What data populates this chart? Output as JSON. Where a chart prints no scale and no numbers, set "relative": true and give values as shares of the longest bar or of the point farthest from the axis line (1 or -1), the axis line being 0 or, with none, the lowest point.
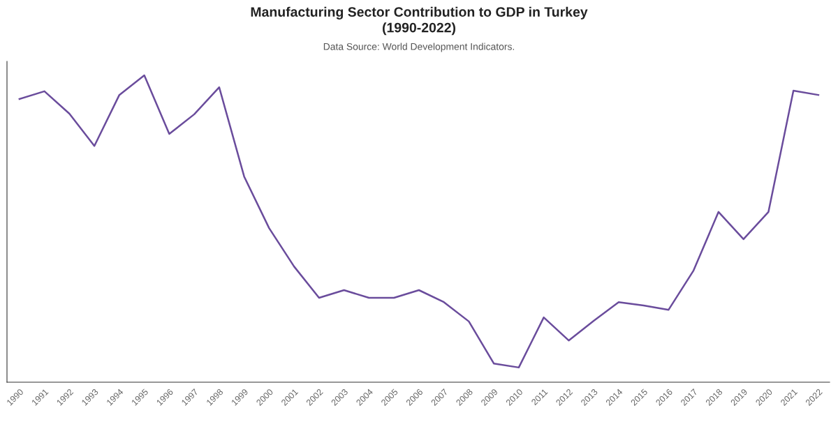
{
  "chart_data": {
    "type": "line",
    "title": "Manufacturing Sector Contribution to GDP in Turkey\n(1990-2022)",
    "subtitle": "Data Source: World Development Indicators.",
    "relative": true,
    "grid": false,
    "legend": false,
    "marker": "none",
    "line_style": "solid",
    "categories": [
      "1990",
      "1991",
      "1992",
      "1993",
      "1994",
      "1995",
      "1996",
      "1997",
      "1998",
      "1999",
      "2000",
      "2001",
      "2002",
      "2003",
      "2004",
      "2005",
      "2006",
      "2007",
      "2008",
      "2009",
      "2010",
      "2011",
      "2012",
      "2013",
      "2014",
      "2015",
      "2016",
      "2017",
      "2018",
      "2019",
      "2020",
      "2021",
      "2022"
    ],
    "series": [
      {
        "color": "#6a4c9c",
        "values": [
          0.923,
          0.948,
          0.875,
          0.77,
          0.936,
          1.0,
          0.809,
          0.873,
          0.961,
          0.67,
          0.502,
          0.377,
          0.275,
          0.3,
          0.275,
          0.275,
          0.3,
          0.261,
          0.198,
          0.061,
          0.048,
          0.211,
          0.136,
          0.2,
          0.261,
          0.25,
          0.236,
          0.364,
          0.555,
          0.466,
          0.555,
          0.95,
          0.936
        ]
      }
    ]
  }
}
